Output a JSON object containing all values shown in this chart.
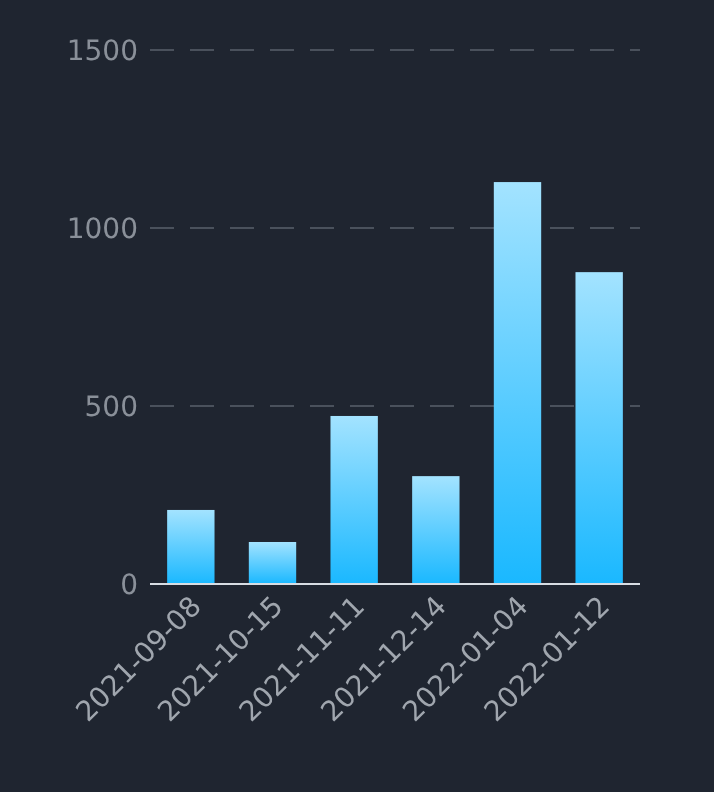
{
  "chart_data": {
    "type": "bar",
    "categories": [
      "2021-09-08",
      "2021-10-15",
      "2021-11-11",
      "2021-12-14",
      "2022-01-04",
      "2022-01-12"
    ],
    "values": [
      208,
      118,
      472,
      303,
      1129,
      876
    ],
    "color": "#1ab8ff",
    "ylim": [
      0,
      1500
    ],
    "yticks": [
      0,
      500,
      1000,
      1500
    ],
    "grid": "y"
  }
}
